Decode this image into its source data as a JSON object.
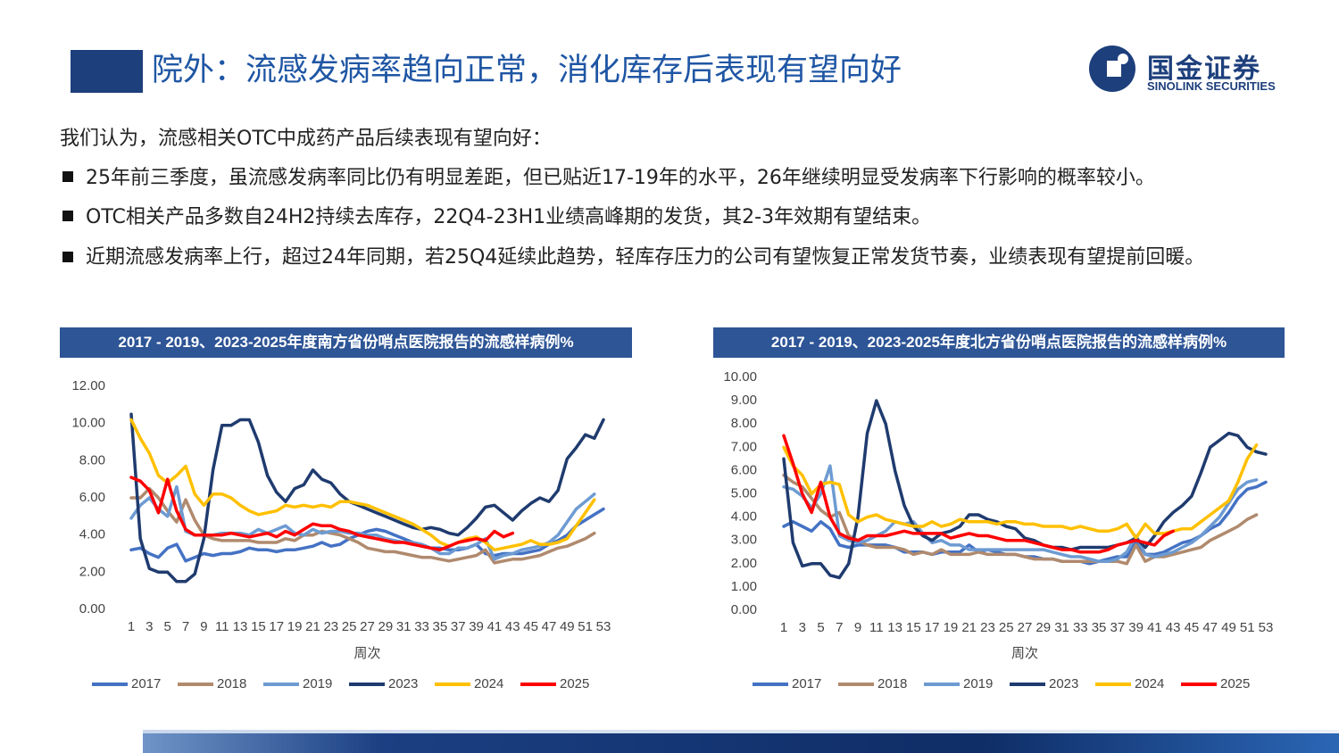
{
  "header": {
    "title": "院外：流感发病率趋向正常，消化库存后表现有望向好",
    "logo_cn": "国金证券",
    "logo_en": "SINOLINK SECURITIES"
  },
  "intro": "我们认为，流感相关OTC中成药产品后续表现有望向好：",
  "bullets": [
    "25年前三季度，虽流感发病率同比仍有明显差距，但已贴近17-19年的水平，26年继续明显受发病率下行影响的概率较小。",
    "OTC相关产品多数自24H2持续去库存，22Q4-23H1业绩高峰期的发货，其2-3年效期有望结束。",
    "近期流感发病率上行，超过24年同期，若25Q4延续此趋势，轻库存压力的公司有望恢复正常发货节奏，业绩表现有望提前回暖。"
  ],
  "chart_data": [
    {
      "type": "line",
      "title": "2017 - 2019、2023-2025年度南方省份哨点医院报告的流感样病例%",
      "xlabel": "周次",
      "categories": [
        1,
        null,
        3,
        null,
        5,
        null,
        7,
        null,
        9,
        null,
        11,
        null,
        13,
        null,
        15,
        null,
        17,
        null,
        19,
        null,
        21,
        null,
        23,
        null,
        25,
        null,
        27,
        null,
        29,
        null,
        31,
        null,
        33,
        null,
        35,
        null,
        37,
        null,
        39,
        null,
        41,
        null,
        43,
        null,
        45,
        null,
        47,
        null,
        49,
        null,
        51,
        null,
        53
      ],
      "ylim": [
        0,
        12
      ],
      "yticks": [
        {
          "value": 0,
          "label": "0.00"
        },
        {
          "value": 2,
          "label": "2.00"
        },
        {
          "value": 4,
          "label": "4.00"
        },
        {
          "value": 6,
          "label": "6.00"
        },
        {
          "value": 8,
          "label": "8.00"
        },
        {
          "value": 10,
          "label": "10.00"
        },
        {
          "value": 12,
          "label": "12.00"
        }
      ],
      "grid": false,
      "legend": "bottom",
      "series": [
        {
          "name": "2017",
          "color": "#4472c4",
          "values": [
            3.2,
            3.3,
            3.0,
            2.8,
            3.3,
            3.5,
            2.6,
            2.8,
            3.0,
            2.9,
            3.0,
            3.0,
            3.1,
            3.3,
            3.2,
            3.2,
            3.1,
            3.2,
            3.2,
            3.3,
            3.4,
            3.6,
            3.4,
            3.5,
            3.8,
            4.0,
            4.2,
            4.3,
            4.2,
            4.0,
            3.8,
            3.6,
            3.4,
            3.3,
            3.3,
            3.2,
            3.2,
            3.3,
            3.5,
            3.0,
            2.9,
            3.0,
            3.0,
            3.0,
            3.1,
            3.2,
            3.5,
            3.7,
            4.0,
            4.5,
            4.8,
            5.1,
            5.4
          ]
        },
        {
          "name": "2018",
          "color": "#b08a6e",
          "values": [
            6.0,
            6.0,
            6.5,
            6.0,
            5.3,
            4.7,
            5.9,
            4.8,
            4.0,
            3.8,
            3.7,
            3.7,
            3.7,
            3.7,
            3.6,
            3.6,
            3.6,
            3.8,
            3.7,
            4.0,
            4.0,
            4.2,
            4.1,
            4.0,
            3.8,
            3.6,
            3.3,
            3.2,
            3.1,
            3.1,
            3.0,
            2.9,
            2.8,
            2.8,
            2.7,
            2.6,
            2.7,
            2.8,
            2.9,
            3.2,
            2.5,
            2.6,
            2.7,
            2.7,
            2.8,
            2.9,
            3.1,
            3.3,
            3.4,
            3.6,
            3.8,
            4.1,
            null
          ]
        },
        {
          "name": "2019",
          "color": "#6d9bd2",
          "values": [
            4.9,
            5.6,
            6.0,
            5.4,
            5.0,
            6.6,
            4.2,
            4.0,
            4.0,
            4.0,
            4.1,
            4.1,
            4.1,
            4.0,
            4.3,
            4.1,
            4.3,
            4.5,
            4.1,
            4.0,
            4.3,
            4.1,
            4.2,
            4.2,
            4.1,
            4.1,
            4.0,
            4.0,
            3.8,
            3.7,
            3.6,
            3.6,
            3.5,
            3.3,
            3.0,
            3.0,
            3.3,
            3.3,
            3.5,
            3.8,
            2.7,
            2.9,
            3.0,
            3.2,
            3.3,
            3.4,
            3.6,
            4.0,
            4.7,
            5.4,
            5.8,
            6.2,
            null
          ]
        },
        {
          "name": "2023",
          "color": "#1f3b6f",
          "values": [
            10.5,
            3.8,
            2.2,
            2.0,
            2.0,
            1.5,
            1.5,
            1.9,
            3.8,
            7.5,
            9.9,
            9.9,
            10.2,
            10.2,
            9.0,
            7.2,
            6.3,
            5.8,
            6.5,
            6.7,
            7.5,
            7.0,
            6.8,
            6.2,
            5.8,
            5.6,
            5.4,
            5.2,
            5.0,
            4.8,
            4.6,
            4.4,
            4.3,
            4.4,
            4.3,
            4.1,
            4.0,
            4.4,
            4.9,
            5.5,
            5.6,
            5.2,
            4.8,
            5.3,
            5.7,
            6.0,
            5.8,
            6.4,
            8.1,
            8.7,
            9.4,
            9.2,
            10.2
          ]
        },
        {
          "name": "2024",
          "color": "#ffc000",
          "values": [
            10.2,
            9.2,
            8.4,
            7.2,
            6.8,
            7.2,
            7.7,
            6.2,
            5.6,
            6.2,
            6.2,
            6.0,
            5.6,
            5.3,
            5.1,
            5.2,
            5.3,
            5.6,
            5.5,
            5.6,
            5.5,
            5.6,
            5.5,
            5.8,
            5.8,
            5.7,
            5.6,
            5.4,
            5.2,
            5.0,
            4.8,
            4.6,
            4.3,
            4.0,
            3.6,
            3.4,
            3.6,
            3.8,
            3.9,
            3.6,
            3.2,
            3.3,
            3.4,
            3.5,
            3.7,
            3.5,
            3.5,
            3.6,
            3.8,
            4.5,
            5.2,
            5.9,
            null
          ]
        },
        {
          "name": "2025",
          "color": "#ff0000",
          "values": [
            7.1,
            6.9,
            6.4,
            5.2,
            7.0,
            5.3,
            4.3,
            4.0,
            4.0,
            4.0,
            4.0,
            4.1,
            4.0,
            3.9,
            4.0,
            4.1,
            3.9,
            4.2,
            4.0,
            4.3,
            4.6,
            4.5,
            4.5,
            4.3,
            4.2,
            4.0,
            3.9,
            3.8,
            3.7,
            3.6,
            3.6,
            3.5,
            3.4,
            3.3,
            3.2,
            3.4,
            3.6,
            3.7,
            3.8,
            3.7,
            4.2,
            3.9,
            4.1,
            null,
            null,
            null,
            null,
            null,
            null,
            null,
            null,
            null,
            null
          ]
        }
      ]
    },
    {
      "type": "line",
      "title": "2017 - 2019、2023-2025年度北方省份哨点医院报告的流感样病例%",
      "xlabel": "周次",
      "categories": [
        1,
        null,
        3,
        null,
        5,
        null,
        7,
        null,
        9,
        null,
        11,
        null,
        13,
        null,
        15,
        null,
        17,
        null,
        19,
        null,
        21,
        null,
        23,
        null,
        25,
        null,
        27,
        null,
        29,
        null,
        31,
        null,
        33,
        null,
        35,
        null,
        37,
        null,
        39,
        null,
        41,
        null,
        43,
        null,
        45,
        null,
        47,
        null,
        49,
        null,
        51,
        null,
        53
      ],
      "ylim": [
        0,
        10
      ],
      "yticks": [
        {
          "value": 0,
          "label": "0.00"
        },
        {
          "value": 1,
          "label": "1.00"
        },
        {
          "value": 2,
          "label": "2.00"
        },
        {
          "value": 3,
          "label": "3.00"
        },
        {
          "value": 4,
          "label": "4.00"
        },
        {
          "value": 5,
          "label": "5.00"
        },
        {
          "value": 6,
          "label": "6.00"
        },
        {
          "value": 7,
          "label": "7.00"
        },
        {
          "value": 8,
          "label": "8.00"
        },
        {
          "value": 9,
          "label": "9.00"
        },
        {
          "value": 10,
          "label": "10.00"
        }
      ],
      "grid": false,
      "legend": "bottom",
      "series": [
        {
          "name": "2017",
          "color": "#4472c4",
          "values": [
            3.6,
            3.8,
            3.6,
            3.4,
            3.8,
            3.5,
            2.8,
            2.7,
            2.8,
            2.8,
            2.8,
            2.8,
            2.7,
            2.5,
            2.5,
            2.5,
            2.4,
            2.5,
            2.5,
            2.5,
            2.8,
            2.5,
            2.6,
            2.5,
            2.4,
            2.4,
            2.3,
            2.3,
            2.2,
            2.2,
            2.1,
            2.1,
            2.1,
            2.0,
            2.1,
            2.2,
            2.3,
            2.3,
            3.0,
            2.4,
            2.4,
            2.5,
            2.7,
            2.9,
            3.0,
            3.2,
            3.5,
            3.7,
            4.2,
            4.8,
            5.2,
            5.3,
            5.5
          ]
        },
        {
          "name": "2018",
          "color": "#b08a6e",
          "values": [
            5.8,
            5.5,
            5.3,
            4.8,
            4.3,
            4.0,
            4.2,
            3.2,
            3.0,
            2.8,
            2.7,
            2.7,
            2.7,
            2.6,
            2.4,
            2.5,
            2.4,
            2.6,
            2.4,
            2.4,
            2.4,
            2.5,
            2.4,
            2.4,
            2.4,
            2.4,
            2.3,
            2.2,
            2.2,
            2.2,
            2.1,
            2.1,
            2.1,
            2.1,
            2.1,
            2.1,
            2.1,
            2.0,
            2.8,
            2.1,
            2.3,
            2.3,
            2.4,
            2.5,
            2.6,
            2.7,
            3.0,
            3.2,
            3.4,
            3.6,
            3.9,
            4.1,
            null
          ]
        },
        {
          "name": "2019",
          "color": "#6d9bd2",
          "values": [
            5.3,
            5.2,
            4.9,
            4.4,
            5.0,
            6.2,
            3.2,
            3.0,
            2.9,
            3.0,
            3.2,
            3.4,
            3.8,
            3.7,
            3.8,
            3.3,
            2.9,
            3.0,
            2.8,
            2.8,
            2.6,
            2.6,
            2.6,
            2.6,
            2.6,
            2.6,
            2.6,
            2.6,
            2.6,
            2.5,
            2.4,
            2.3,
            2.3,
            2.2,
            2.1,
            2.1,
            2.2,
            2.5,
            3.2,
            2.4,
            2.3,
            2.4,
            2.5,
            2.7,
            2.9,
            3.2,
            3.6,
            4.0,
            4.6,
            5.2,
            5.5,
            5.6,
            null
          ]
        },
        {
          "name": "2023",
          "color": "#1f3b6f",
          "values": [
            6.5,
            2.9,
            1.9,
            2.0,
            2.0,
            1.5,
            1.4,
            2.0,
            4.0,
            7.6,
            9.0,
            8.0,
            6.0,
            4.5,
            3.6,
            3.2,
            3.0,
            3.3,
            3.4,
            3.6,
            4.1,
            4.1,
            3.9,
            3.8,
            3.6,
            3.5,
            3.1,
            3.0,
            2.8,
            2.7,
            2.7,
            2.6,
            2.7,
            2.7,
            2.7,
            2.7,
            2.8,
            2.9,
            3.1,
            2.7,
            3.2,
            3.8,
            4.2,
            4.5,
            4.9,
            5.9,
            7.0,
            7.3,
            7.6,
            7.5,
            7.0,
            6.8,
            6.7
          ]
        },
        {
          "name": "2024",
          "color": "#ffc000",
          "values": [
            7.0,
            6.2,
            5.8,
            5.0,
            5.4,
            5.5,
            5.4,
            4.1,
            3.8,
            4.0,
            4.1,
            3.9,
            3.8,
            3.7,
            3.6,
            3.6,
            3.8,
            3.6,
            3.7,
            3.9,
            3.8,
            3.8,
            3.8,
            3.7,
            3.8,
            3.8,
            3.7,
            3.7,
            3.6,
            3.6,
            3.6,
            3.5,
            3.6,
            3.5,
            3.4,
            3.4,
            3.5,
            3.7,
            3.1,
            3.7,
            3.3,
            3.3,
            3.4,
            3.5,
            3.5,
            3.8,
            4.1,
            4.4,
            4.7,
            5.5,
            6.5,
            7.1,
            null
          ]
        },
        {
          "name": "2025",
          "color": "#ff0000",
          "values": [
            7.5,
            6.3,
            5.0,
            4.2,
            5.5,
            4.0,
            3.3,
            3.1,
            3.0,
            3.2,
            3.2,
            3.2,
            3.3,
            3.4,
            3.3,
            3.3,
            3.3,
            3.3,
            3.1,
            3.2,
            3.3,
            3.2,
            3.2,
            3.1,
            3.0,
            3.0,
            3.0,
            2.9,
            2.8,
            2.7,
            2.6,
            2.6,
            2.5,
            2.5,
            2.5,
            2.6,
            2.8,
            2.9,
            3.0,
            2.9,
            2.8,
            3.2,
            3.4,
            null,
            null,
            null,
            null,
            null,
            null,
            null,
            null,
            null,
            null
          ]
        }
      ]
    }
  ]
}
